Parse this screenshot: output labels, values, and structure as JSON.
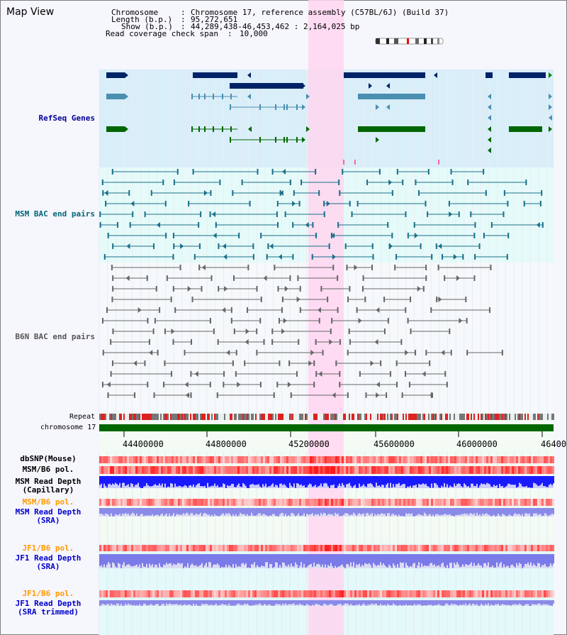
{
  "header": {
    "title": "Map View",
    "chromosome_label": "Chromosome",
    "chromosome_value": "Chromosome 17, reference assembly (C57BL/6J) (Build 37)",
    "length_label": "Length (b.p.)",
    "length_value": "95,272,651",
    "show_label": "Show (b.p.)",
    "show_value": "44,289,438-46,453,462 : 2,164,025 bp",
    "coverage_label": "Read coverage check span",
    "coverage_value": "10,000"
  },
  "tracks": {
    "refseq": "RefSeq Genes",
    "msm_bac": "MSM BAC end pairs",
    "b6n_bac": "B6N BAC end pairs",
    "repeat": "Repeat",
    "chromosome": "chromosome 17"
  },
  "axis": {
    "ticks": [
      "44400000",
      "44800000",
      "45200000",
      "45600000",
      "46000000",
      "46400"
    ]
  },
  "data_tracks": [
    {
      "line1": "dbSNP(Mouse)",
      "line2": "",
      "color": "#333333"
    },
    {
      "line1": "MSM/B6 pol.",
      "line2": "",
      "color": "#333333"
    },
    {
      "line1": "MSM Read Depth",
      "line2": "(Capillary)",
      "color": "#333333"
    },
    {
      "line1": "MSM/B6 pol.",
      "line2": "",
      "color": "#ff9900"
    },
    {
      "line1": "MSM Read Depth",
      "line2": "(SRA)",
      "color": "#0000cc"
    },
    {
      "line1": "JF1/B6 pol.",
      "line2": "",
      "color": "#ff9900"
    },
    {
      "line1": "JF1 Read Depth",
      "line2": "(SRA)",
      "color": "#0000cc"
    },
    {
      "line1": "JF1/B6 pol.",
      "line2": "",
      "color": "#ff9900"
    },
    {
      "line1": "JF1 Read Depth",
      "line2": "(SRA trimmed)",
      "color": "#0000cc"
    }
  ],
  "colors": {
    "refseq_label": "#000099",
    "msm_label": "#006677",
    "b6n_label": "#555555",
    "highlight": "#ffccee",
    "refseq_dark": "#002266",
    "refseq_mid": "#4a8fb0",
    "refseq_green": "#006600",
    "chrom_bar": "#006600"
  }
}
